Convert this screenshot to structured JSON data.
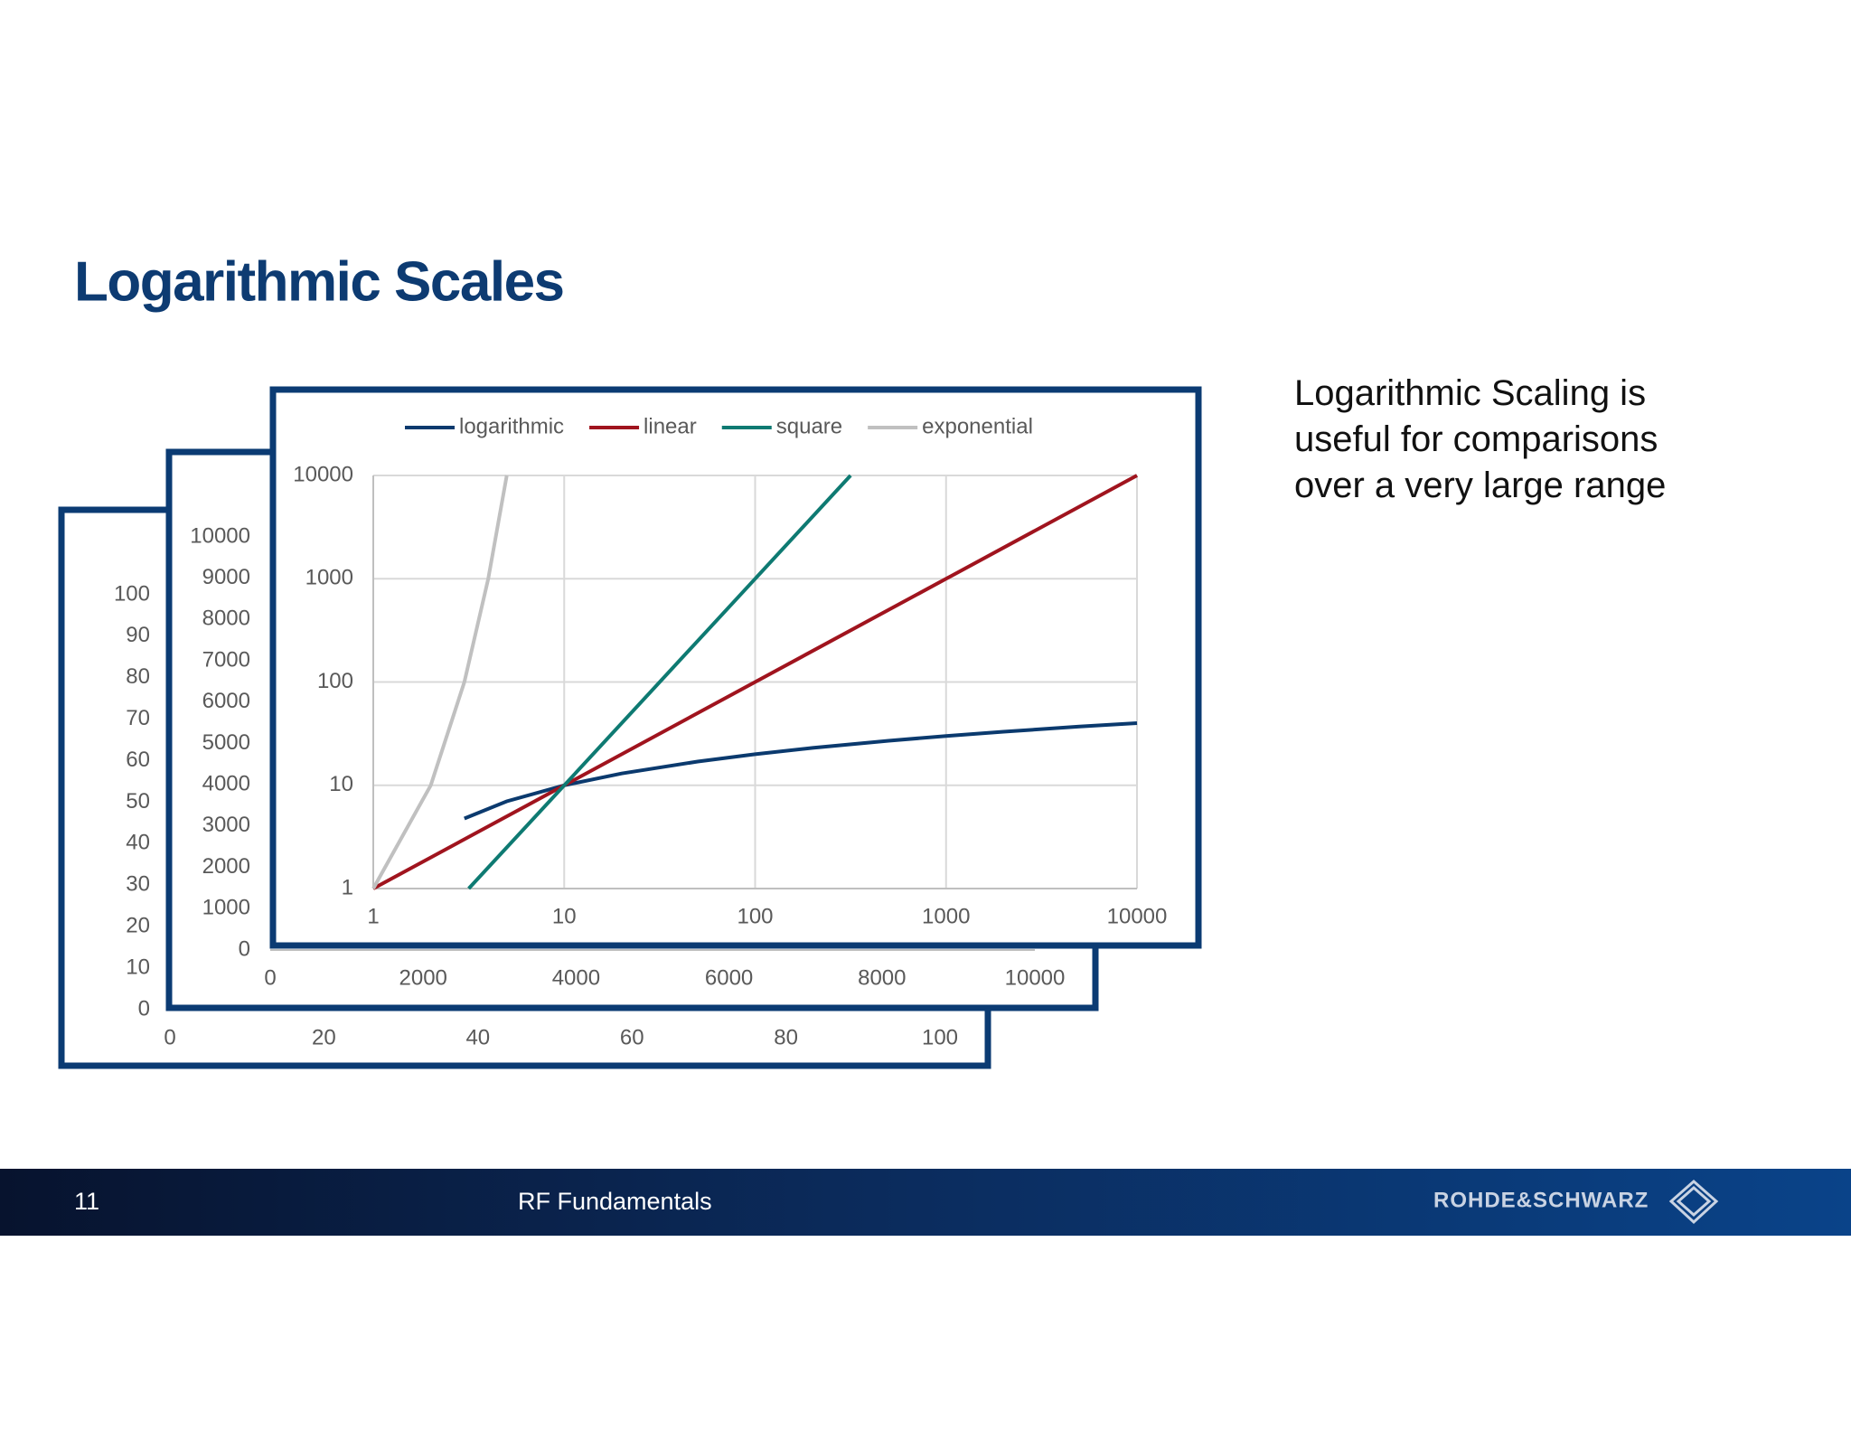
{
  "title": "Logarithmic Scales",
  "body_text": "Logarithmic Scaling is useful for comparisons over a very large range",
  "footer": {
    "page_number": "11",
    "title": "RF Fundamentals",
    "logo": "ROHDE&SCHWARZ"
  },
  "chart_data": [
    {
      "type": "line",
      "xlim": [
        0,
        100
      ],
      "ylim": [
        0,
        100
      ],
      "xticks": [
        0,
        20,
        40,
        60,
        80,
        100
      ],
      "yticks": [
        0,
        10,
        20,
        30,
        40,
        50,
        60,
        70,
        80,
        90,
        100
      ],
      "grid": false
    },
    {
      "type": "line",
      "xlim": [
        0,
        10000
      ],
      "ylim": [
        0,
        10000
      ],
      "xticks": [
        0,
        2000,
        4000,
        6000,
        8000,
        10000
      ],
      "yticks": [
        0,
        1000,
        2000,
        3000,
        4000,
        5000,
        6000,
        7000,
        8000,
        9000,
        10000
      ],
      "grid": false
    },
    {
      "type": "line",
      "xscale": "log",
      "yscale": "log",
      "xlim": [
        1,
        10000
      ],
      "ylim": [
        1,
        10000
      ],
      "xticks": [
        1,
        10,
        100,
        1000,
        10000
      ],
      "yticks": [
        1,
        10,
        100,
        1000,
        10000
      ],
      "grid": true,
      "legend": "top",
      "series": [
        {
          "name": "logarithmic",
          "color": "#0b3a6e",
          "x": [
            3,
            5,
            10,
            20,
            50,
            100,
            200,
            500,
            1000,
            2000,
            5000,
            10000
          ],
          "values": [
            4.77,
            6.99,
            10,
            13.01,
            16.99,
            20,
            23.01,
            26.99,
            30,
            33.01,
            36.99,
            40
          ]
        },
        {
          "name": "linear",
          "color": "#a0141e",
          "x": [
            1,
            10,
            100,
            1000,
            10000
          ],
          "values": [
            1,
            10,
            100,
            1000,
            10000
          ]
        },
        {
          "name": "square",
          "color": "#0e7a72",
          "x": [
            3.16,
            10,
            100,
            316.2
          ],
          "values": [
            1,
            10,
            1000,
            10000
          ]
        },
        {
          "name": "exponential",
          "color": "#c0c0c0",
          "x": [
            1,
            2,
            3,
            4,
            5
          ],
          "values": [
            1,
            10,
            100,
            1000,
            10000
          ]
        }
      ]
    }
  ]
}
